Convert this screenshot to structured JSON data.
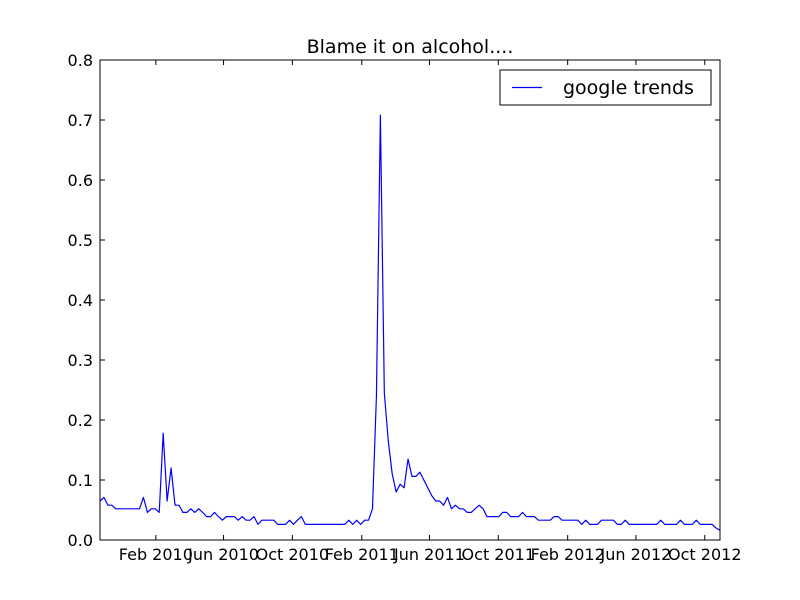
{
  "chart_data": {
    "type": "line",
    "title": "Blame it on alcohol....",
    "xlabel": "",
    "ylabel": "",
    "xlim": [
      "2009-10-25",
      "2012-10-28"
    ],
    "ylim": [
      0.0,
      0.8
    ],
    "grid": false,
    "legend_position": "top-right",
    "x_ticks": [
      {
        "date": "2010-02-01",
        "label": "Feb 2010"
      },
      {
        "date": "2010-06-01",
        "label": "Jun 2010"
      },
      {
        "date": "2010-10-01",
        "label": "Oct 2010"
      },
      {
        "date": "2011-02-01",
        "label": "Feb 2011"
      },
      {
        "date": "2011-06-01",
        "label": "Jun 2011"
      },
      {
        "date": "2011-10-01",
        "label": "Oct 2011"
      },
      {
        "date": "2012-02-01",
        "label": "Feb 2012"
      },
      {
        "date": "2012-06-01",
        "label": "Jun 2012"
      },
      {
        "date": "2012-10-01",
        "label": "Oct 2012"
      }
    ],
    "y_ticks": [
      {
        "value": 0.0,
        "label": "0.0"
      },
      {
        "value": 0.1,
        "label": "0.1"
      },
      {
        "value": 0.2,
        "label": "0.2"
      },
      {
        "value": 0.3,
        "label": "0.3"
      },
      {
        "value": 0.4,
        "label": "0.4"
      },
      {
        "value": 0.5,
        "label": "0.5"
      },
      {
        "value": 0.6,
        "label": "0.6"
      },
      {
        "value": 0.7,
        "label": "0.7"
      },
      {
        "value": 0.8,
        "label": "0.8"
      }
    ],
    "series": [
      {
        "name": "google trends",
        "color": "#0000ff",
        "points": [
          [
            "2009-10-25",
            0.065
          ],
          [
            "2009-11-01",
            0.071
          ],
          [
            "2009-11-08",
            0.058
          ],
          [
            "2009-11-15",
            0.058
          ],
          [
            "2009-11-22",
            0.052
          ],
          [
            "2009-11-29",
            0.052
          ],
          [
            "2009-12-06",
            0.052
          ],
          [
            "2009-12-13",
            0.052
          ],
          [
            "2009-12-20",
            0.052
          ],
          [
            "2009-12-27",
            0.052
          ],
          [
            "2010-01-03",
            0.052
          ],
          [
            "2010-01-10",
            0.071
          ],
          [
            "2010-01-17",
            0.046
          ],
          [
            "2010-01-24",
            0.052
          ],
          [
            "2010-01-31",
            0.052
          ],
          [
            "2010-02-07",
            0.046
          ],
          [
            "2010-02-14",
            0.178
          ],
          [
            "2010-02-21",
            0.065
          ],
          [
            "2010-02-28",
            0.12
          ],
          [
            "2010-03-07",
            0.058
          ],
          [
            "2010-03-14",
            0.058
          ],
          [
            "2010-03-21",
            0.046
          ],
          [
            "2010-03-28",
            0.046
          ],
          [
            "2010-04-04",
            0.052
          ],
          [
            "2010-04-11",
            0.046
          ],
          [
            "2010-04-18",
            0.052
          ],
          [
            "2010-04-25",
            0.046
          ],
          [
            "2010-05-02",
            0.039
          ],
          [
            "2010-05-09",
            0.039
          ],
          [
            "2010-05-16",
            0.046
          ],
          [
            "2010-05-23",
            0.039
          ],
          [
            "2010-05-30",
            0.033
          ],
          [
            "2010-06-06",
            0.039
          ],
          [
            "2010-06-13",
            0.039
          ],
          [
            "2010-06-20",
            0.039
          ],
          [
            "2010-06-27",
            0.033
          ],
          [
            "2010-07-04",
            0.039
          ],
          [
            "2010-07-11",
            0.033
          ],
          [
            "2010-07-18",
            0.033
          ],
          [
            "2010-07-25",
            0.039
          ],
          [
            "2010-08-01",
            0.026
          ],
          [
            "2010-08-08",
            0.033
          ],
          [
            "2010-08-15",
            0.033
          ],
          [
            "2010-08-22",
            0.033
          ],
          [
            "2010-08-29",
            0.033
          ],
          [
            "2010-09-05",
            0.026
          ],
          [
            "2010-09-12",
            0.026
          ],
          [
            "2010-09-19",
            0.026
          ],
          [
            "2010-09-26",
            0.033
          ],
          [
            "2010-10-03",
            0.026
          ],
          [
            "2010-10-10",
            0.033
          ],
          [
            "2010-10-17",
            0.039
          ],
          [
            "2010-10-24",
            0.026
          ],
          [
            "2010-10-31",
            0.026
          ],
          [
            "2010-11-07",
            0.026
          ],
          [
            "2010-11-14",
            0.026
          ],
          [
            "2010-11-21",
            0.026
          ],
          [
            "2010-11-28",
            0.026
          ],
          [
            "2010-12-05",
            0.026
          ],
          [
            "2010-12-12",
            0.026
          ],
          [
            "2010-12-19",
            0.026
          ],
          [
            "2010-12-26",
            0.026
          ],
          [
            "2011-01-02",
            0.026
          ],
          [
            "2011-01-09",
            0.033
          ],
          [
            "2011-01-16",
            0.026
          ],
          [
            "2011-01-23",
            0.033
          ],
          [
            "2011-01-30",
            0.026
          ],
          [
            "2011-02-06",
            0.033
          ],
          [
            "2011-02-13",
            0.033
          ],
          [
            "2011-02-20",
            0.052
          ],
          [
            "2011-02-27",
            0.24
          ],
          [
            "2011-03-06",
            0.708
          ],
          [
            "2011-03-13",
            0.245
          ],
          [
            "2011-03-20",
            0.165
          ],
          [
            "2011-03-27",
            0.11
          ],
          [
            "2011-04-03",
            0.08
          ],
          [
            "2011-04-10",
            0.093
          ],
          [
            "2011-04-17",
            0.087
          ],
          [
            "2011-04-24",
            0.135
          ],
          [
            "2011-05-01",
            0.106
          ],
          [
            "2011-05-08",
            0.106
          ],
          [
            "2011-05-15",
            0.113
          ],
          [
            "2011-05-22",
            0.1
          ],
          [
            "2011-05-29",
            0.087
          ],
          [
            "2011-06-05",
            0.074
          ],
          [
            "2011-06-12",
            0.065
          ],
          [
            "2011-06-19",
            0.065
          ],
          [
            "2011-06-26",
            0.058
          ],
          [
            "2011-07-03",
            0.071
          ],
          [
            "2011-07-10",
            0.052
          ],
          [
            "2011-07-17",
            0.058
          ],
          [
            "2011-07-24",
            0.052
          ],
          [
            "2011-07-31",
            0.052
          ],
          [
            "2011-08-07",
            0.046
          ],
          [
            "2011-08-14",
            0.046
          ],
          [
            "2011-08-21",
            0.052
          ],
          [
            "2011-08-28",
            0.058
          ],
          [
            "2011-09-04",
            0.052
          ],
          [
            "2011-09-11",
            0.039
          ],
          [
            "2011-09-18",
            0.039
          ],
          [
            "2011-09-25",
            0.039
          ],
          [
            "2011-10-02",
            0.039
          ],
          [
            "2011-10-09",
            0.046
          ],
          [
            "2011-10-16",
            0.046
          ],
          [
            "2011-10-23",
            0.039
          ],
          [
            "2011-10-30",
            0.039
          ],
          [
            "2011-11-06",
            0.039
          ],
          [
            "2011-11-13",
            0.046
          ],
          [
            "2011-11-20",
            0.039
          ],
          [
            "2011-11-27",
            0.039
          ],
          [
            "2011-12-04",
            0.039
          ],
          [
            "2011-12-11",
            0.033
          ],
          [
            "2011-12-18",
            0.033
          ],
          [
            "2011-12-25",
            0.033
          ],
          [
            "2012-01-01",
            0.033
          ],
          [
            "2012-01-08",
            0.039
          ],
          [
            "2012-01-15",
            0.039
          ],
          [
            "2012-01-22",
            0.033
          ],
          [
            "2012-01-29",
            0.033
          ],
          [
            "2012-02-05",
            0.033
          ],
          [
            "2012-02-12",
            0.033
          ],
          [
            "2012-02-19",
            0.033
          ],
          [
            "2012-02-26",
            0.026
          ],
          [
            "2012-03-04",
            0.033
          ],
          [
            "2012-03-11",
            0.026
          ],
          [
            "2012-03-18",
            0.026
          ],
          [
            "2012-03-25",
            0.026
          ],
          [
            "2012-04-01",
            0.033
          ],
          [
            "2012-04-08",
            0.033
          ],
          [
            "2012-04-15",
            0.033
          ],
          [
            "2012-04-22",
            0.033
          ],
          [
            "2012-04-29",
            0.026
          ],
          [
            "2012-05-06",
            0.026
          ],
          [
            "2012-05-13",
            0.033
          ],
          [
            "2012-05-20",
            0.026
          ],
          [
            "2012-05-27",
            0.026
          ],
          [
            "2012-06-03",
            0.026
          ],
          [
            "2012-06-10",
            0.026
          ],
          [
            "2012-06-17",
            0.026
          ],
          [
            "2012-06-24",
            0.026
          ],
          [
            "2012-07-01",
            0.026
          ],
          [
            "2012-07-08",
            0.026
          ],
          [
            "2012-07-15",
            0.033
          ],
          [
            "2012-07-22",
            0.026
          ],
          [
            "2012-07-29",
            0.026
          ],
          [
            "2012-08-05",
            0.026
          ],
          [
            "2012-08-12",
            0.026
          ],
          [
            "2012-08-19",
            0.033
          ],
          [
            "2012-08-26",
            0.026
          ],
          [
            "2012-09-02",
            0.026
          ],
          [
            "2012-09-09",
            0.026
          ],
          [
            "2012-09-16",
            0.033
          ],
          [
            "2012-09-23",
            0.026
          ],
          [
            "2012-09-30",
            0.026
          ],
          [
            "2012-10-07",
            0.026
          ],
          [
            "2012-10-14",
            0.026
          ],
          [
            "2012-10-21",
            0.02
          ],
          [
            "2012-10-28",
            0.016
          ]
        ]
      }
    ]
  }
}
